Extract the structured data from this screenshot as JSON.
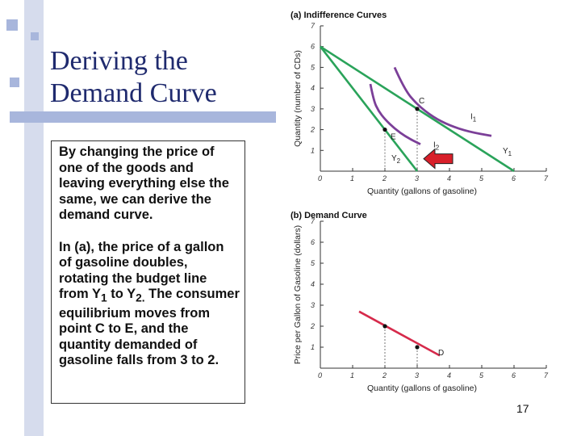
{
  "slide": {
    "title_line1": "Deriving the",
    "title_line2": "Demand Curve",
    "para1": "By changing the price of one of the goods and leaving everything else the same, we can derive the demand curve.",
    "para2_a": "In (a), the price of a gallon of gasoline doubles, rotating the budget line from Y",
    "para2_sub1": "1",
    "para2_b": " to Y",
    "para2_sub2": "2.",
    "para2_c": " The consumer equilibrium moves from point C to E, and the quantity demanded of gasoline falls from 3 to 2.",
    "page_number": "17"
  },
  "colors": {
    "budget_line": "#2aa35a",
    "indifference": "#7b3f98",
    "demand": "#d62a4b",
    "arrow": "#d81f2a",
    "title": "#1f2a6e"
  },
  "chart_data": [
    {
      "type": "line",
      "title": "(a) Indifference Curves",
      "xlabel": "Quantity (gallons of gasoline)",
      "ylabel": "Quantity (number of CDs)",
      "xlim": [
        0,
        7
      ],
      "ylim": [
        0,
        7
      ],
      "xticks": [
        "0",
        "1",
        "2",
        "3",
        "4",
        "5",
        "6",
        "7"
      ],
      "yticks": [
        "1",
        "2",
        "3",
        "4",
        "5",
        "6",
        "7"
      ],
      "series": [
        {
          "name": "Y1",
          "kind": "budget",
          "x": [
            0,
            6
          ],
          "y": [
            6,
            0
          ]
        },
        {
          "name": "Y2",
          "kind": "budget",
          "x": [
            0,
            3
          ],
          "y": [
            6,
            0
          ]
        },
        {
          "name": "I1",
          "kind": "indifference",
          "x": [
            2.3,
            2.6,
            3,
            3.5,
            4,
            4.6,
            5.3
          ],
          "y": [
            5,
            3.95,
            3.2,
            2.6,
            2.2,
            1.9,
            1.7
          ]
        },
        {
          "name": "I2",
          "kind": "indifference",
          "x": [
            1.55,
            1.65,
            1.8,
            2,
            2.3,
            2.65,
            3.1
          ],
          "y": [
            4.2,
            3.4,
            2.9,
            2.5,
            2.05,
            1.65,
            1.3
          ]
        }
      ],
      "points": [
        {
          "label": "C",
          "x": 3,
          "y": 3
        },
        {
          "label": "E",
          "x": 2,
          "y": 2
        }
      ],
      "series_labels": [
        {
          "text": "I",
          "sub": "1",
          "x": 4.65,
          "y": 2.5
        },
        {
          "text": "I",
          "sub": "2",
          "x": 3.5,
          "y": 1.15
        },
        {
          "text": "Y",
          "sub": "1",
          "x": 5.65,
          "y": 0.85
        },
        {
          "text": "Y",
          "sub": "2",
          "x": 2.2,
          "y": 0.5
        }
      ],
      "annotation": {
        "type": "arrow",
        "from": [
          4.1,
          0.6
        ],
        "to": [
          3.2,
          0.6
        ]
      }
    },
    {
      "type": "line",
      "title": "(b) Demand Curve",
      "xlabel": "Quantity (gallons of gasoline)",
      "ylabel": "Price per Gallon of Gasoline (dollars)",
      "xlim": [
        0,
        7
      ],
      "ylim": [
        0,
        7
      ],
      "xticks": [
        "0",
        "1",
        "2",
        "3",
        "4",
        "5",
        "6",
        "7"
      ],
      "yticks": [
        "1",
        "2",
        "3",
        "4",
        "5",
        "6",
        "7"
      ],
      "series": [
        {
          "name": "D",
          "kind": "demand",
          "x": [
            1.2,
            3.7
          ],
          "y": [
            2.7,
            0.6
          ]
        }
      ],
      "points": [
        {
          "label": "",
          "x": 2,
          "y": 2
        },
        {
          "label": "",
          "x": 3,
          "y": 1
        }
      ],
      "series_labels": [
        {
          "text": "D",
          "sub": "",
          "x": 3.65,
          "y": 0.62
        }
      ]
    }
  ]
}
